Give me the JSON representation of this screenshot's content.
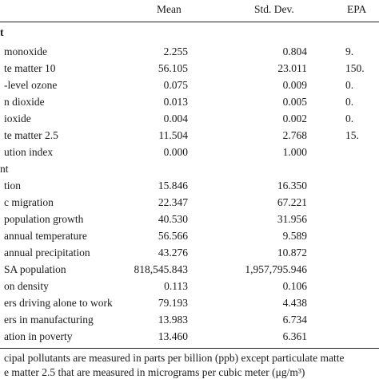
{
  "headers": {
    "mean": "Mean",
    "std": "Std. Dev.",
    "epa": "EPA"
  },
  "sections": {
    "s1": "t",
    "s2": "nt"
  },
  "rows": [
    {
      "label": "monoxide",
      "mean": "2.255",
      "std": "0.804",
      "epa": "9."
    },
    {
      "label": "te matter 10",
      "mean": "56.105",
      "std": "23.011",
      "epa": "150."
    },
    {
      "label": "-level ozone",
      "mean": "0.075",
      "std": "0.009",
      "epa": "0."
    },
    {
      "label": "n dioxide",
      "mean": "0.013",
      "std": "0.005",
      "epa": "0."
    },
    {
      "label": "ioxide",
      "mean": "0.004",
      "std": "0.002",
      "epa": "0."
    },
    {
      "label": "te matter 2.5",
      "mean": "11.504",
      "std": "2.768",
      "epa": "15."
    },
    {
      "label": "ution index",
      "mean": "0.000",
      "std": "1.000",
      "epa": ""
    },
    {
      "label": "tion",
      "mean": "15.846",
      "std": "16.350",
      "epa": ""
    },
    {
      "label": "c migration",
      "mean": "22.347",
      "std": "67.221",
      "epa": ""
    },
    {
      "label": "population growth",
      "mean": "40.530",
      "std": "31.956",
      "epa": ""
    },
    {
      "label": "annual temperature",
      "mean": "56.566",
      "std": "9.589",
      "epa": ""
    },
    {
      "label": "annual precipitation",
      "mean": "43.276",
      "std": "10.872",
      "epa": ""
    },
    {
      "label": "SA population",
      "mean": "818,545.843",
      "std": "1,957,795.946",
      "epa": ""
    },
    {
      "label": "on density",
      "mean": "0.113",
      "std": "0.106",
      "epa": ""
    },
    {
      "label": "ers driving alone to work",
      "mean": "79.193",
      "std": "4.438",
      "epa": ""
    },
    {
      "label": "ers in manufacturing",
      "mean": "13.983",
      "std": "6.734",
      "epa": ""
    },
    {
      "label": "ation in poverty",
      "mean": "13.460",
      "std": "6.361",
      "epa": ""
    }
  ],
  "footnote": {
    "line1": "cipal pollutants are measured in parts per billion (ppb) except particulate matte",
    "line2": "e matter 2.5 that are measured in micrograms per cubic meter (μg/m³)"
  }
}
